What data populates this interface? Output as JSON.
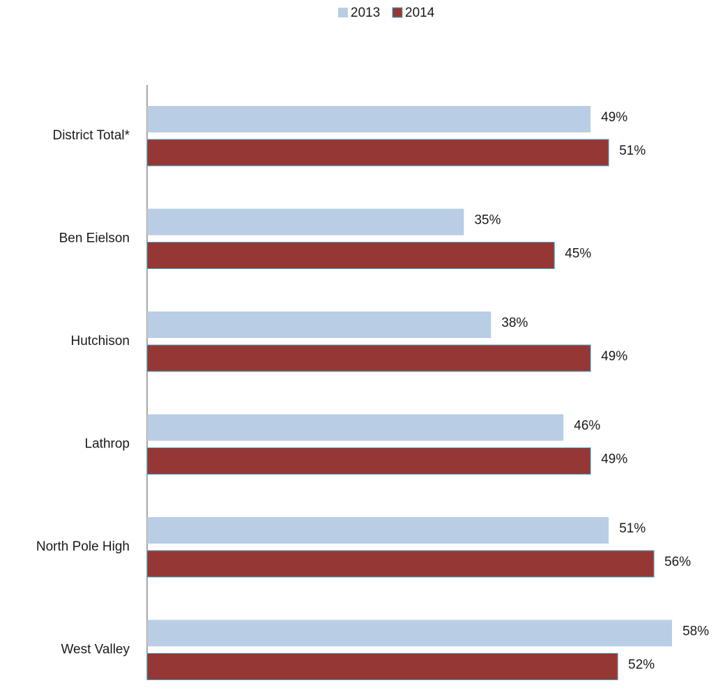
{
  "chart_data": {
    "type": "hbar",
    "categories": [
      "District Total*",
      "Ben Eielson",
      "Hutchison",
      "Lathrop",
      "North Pole High",
      "West Valley"
    ],
    "series": [
      {
        "name": "2013",
        "color": "#b9cde5",
        "values": [
          49,
          35,
          38,
          46,
          51,
          58
        ],
        "value_labels": [
          "49%",
          "35%",
          "38%",
          "46%",
          "51%",
          "58%"
        ]
      },
      {
        "name": "2014",
        "color": "#953735",
        "values": [
          51,
          45,
          49,
          49,
          56,
          52
        ],
        "value_labels": [
          "51%",
          "45%",
          "49%",
          "49%",
          "56%",
          "52%"
        ]
      }
    ],
    "xlim": [
      0,
      63
    ],
    "legend": "top"
  }
}
